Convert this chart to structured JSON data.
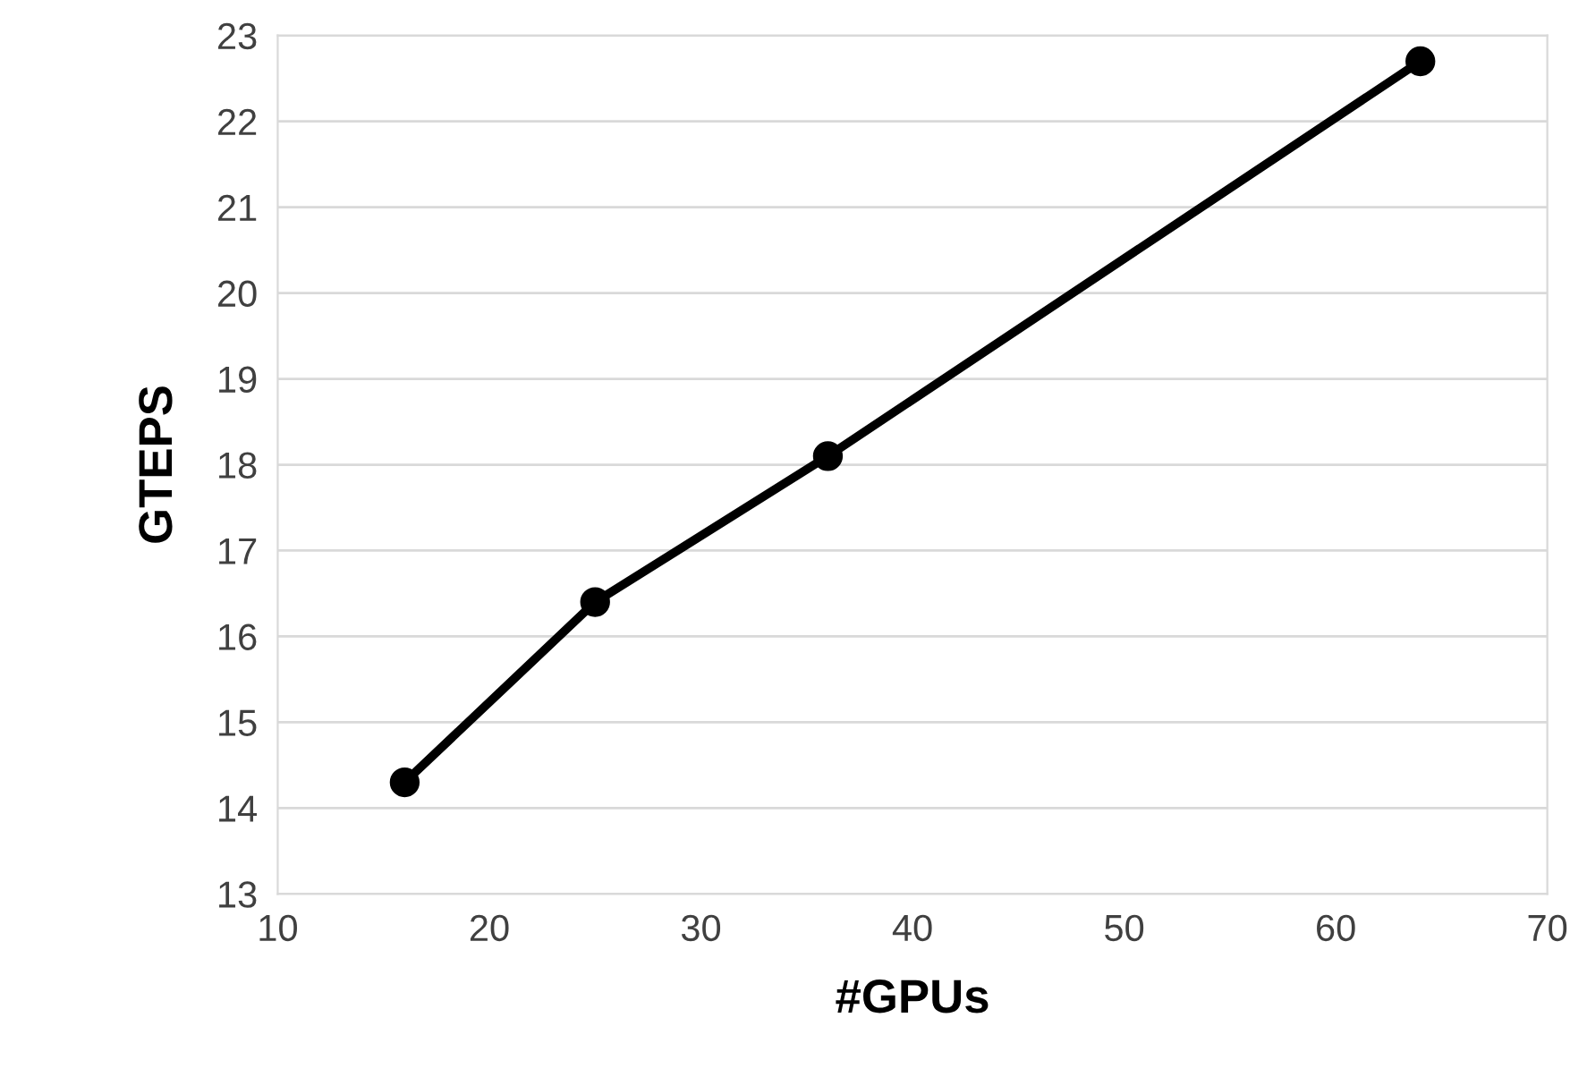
{
  "chart_data": {
    "type": "line",
    "xlabel": "#GPUs",
    "ylabel": "GTEPS",
    "x": [
      16,
      25,
      36,
      64
    ],
    "series": [
      {
        "color": "#000000",
        "values": [
          14.3,
          16.4,
          18.1,
          22.7
        ]
      }
    ],
    "xlim": [
      10,
      70
    ],
    "xticks": [
      10,
      20,
      30,
      40,
      50,
      60,
      70
    ],
    "ylim": [
      13,
      23
    ],
    "yticks": [
      13,
      14,
      15,
      16,
      17,
      18,
      19,
      20,
      21,
      22,
      23
    ],
    "grid": "y",
    "marker": "circle",
    "line_style": "solid",
    "legend": false
  }
}
